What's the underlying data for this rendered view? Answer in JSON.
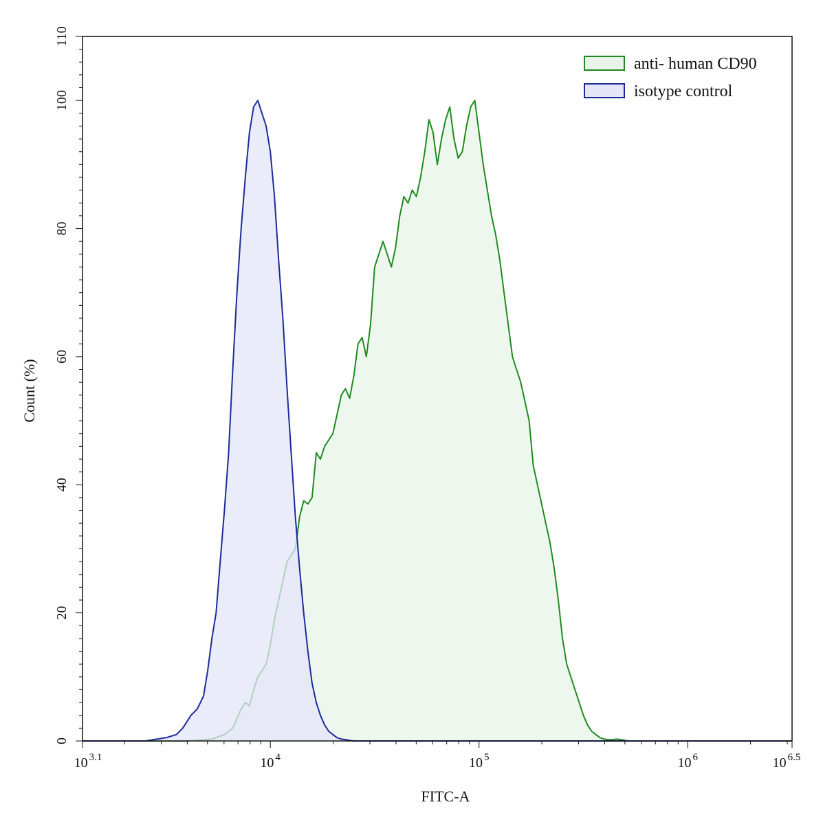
{
  "chart_data": {
    "type": "area",
    "title": "",
    "xlabel": "FITC-A",
    "ylabel": "Count  (%)",
    "x_scale": "log10",
    "xlim": [
      3.1,
      6.5
    ],
    "ylim": [
      0,
      110
    ],
    "x_ticks": [
      {
        "exp": 3.1,
        "base": "10",
        "sup": "3.1"
      },
      {
        "exp": 4,
        "base": "10",
        "sup": "4"
      },
      {
        "exp": 5,
        "base": "10",
        "sup": "5"
      },
      {
        "exp": 6,
        "base": "10",
        "sup": "6"
      },
      {
        "exp": 6.5,
        "base": "10",
        "sup": "6.5"
      }
    ],
    "y_ticks": [
      "0",
      "20",
      "40",
      "60",
      "80",
      "100",
      "110"
    ],
    "grid": false,
    "legend_position": "top-right",
    "series": [
      {
        "name": "anti- human CD90",
        "stroke": "#1f8a1f",
        "fill": "#e8f4e8",
        "x_log10": [
          3.1,
          3.6,
          3.72,
          3.78,
          3.82,
          3.86,
          3.88,
          3.9,
          3.92,
          3.94,
          3.96,
          3.98,
          4.0,
          4.02,
          4.04,
          4.06,
          4.08,
          4.1,
          4.12,
          4.14,
          4.16,
          4.18,
          4.2,
          4.22,
          4.24,
          4.26,
          4.28,
          4.3,
          4.32,
          4.34,
          4.36,
          4.38,
          4.4,
          4.42,
          4.44,
          4.46,
          4.48,
          4.5,
          4.52,
          4.54,
          4.56,
          4.58,
          4.6,
          4.62,
          4.64,
          4.66,
          4.68,
          4.7,
          4.72,
          4.74,
          4.76,
          4.78,
          4.8,
          4.82,
          4.84,
          4.86,
          4.88,
          4.9,
          4.92,
          4.94,
          4.96,
          4.98,
          5.0,
          5.02,
          5.04,
          5.06,
          5.08,
          5.1,
          5.12,
          5.14,
          5.16,
          5.18,
          5.2,
          5.22,
          5.24,
          5.26,
          5.28,
          5.3,
          5.32,
          5.34,
          5.36,
          5.38,
          5.4,
          5.42,
          5.44,
          5.46,
          5.48,
          5.5,
          5.52,
          5.54,
          5.56,
          5.58,
          5.6,
          5.62,
          5.64,
          5.66,
          5.68,
          5.7,
          5.72,
          5.74,
          5.76,
          5.78,
          5.8,
          5.82,
          5.84,
          5.86,
          5.88,
          5.9,
          5.92,
          5.94,
          5.96,
          5.98,
          6.0,
          6.02,
          6.04,
          6.06,
          6.08,
          6.1,
          6.2,
          6.5
        ],
        "y": [
          0,
          0,
          0.3,
          1,
          2,
          5,
          6,
          5.5,
          8,
          10,
          11,
          12,
          15,
          19,
          22,
          25,
          28,
          29,
          30,
          35,
          37.5,
          37,
          38,
          45,
          44,
          46,
          47,
          48,
          51,
          54,
          55,
          53.5,
          57,
          62,
          63,
          60,
          65,
          74,
          76,
          78,
          76,
          74,
          77,
          82,
          85,
          84,
          86,
          85,
          88,
          92,
          97,
          95,
          90,
          94,
          97,
          99,
          94,
          91,
          92,
          96,
          99,
          100,
          95,
          90,
          86,
          82,
          79,
          75,
          70,
          65,
          60,
          58,
          56,
          53,
          50,
          43,
          40,
          37,
          34,
          31,
          27,
          22,
          16,
          12,
          10,
          8,
          6,
          4,
          2.5,
          1.5,
          1,
          0.5,
          0.3,
          0.2,
          0.2,
          0.3,
          0.2,
          0.1,
          0,
          0,
          0,
          0,
          0,
          0,
          0,
          0,
          0,
          0,
          0,
          0,
          0,
          0,
          0,
          0,
          0,
          0,
          0,
          0,
          0,
          0
        ]
      },
      {
        "name": "isotype control",
        "stroke": "#1a2a9a",
        "fill": "#e4e6f8",
        "x_log10": [
          3.1,
          3.4,
          3.5,
          3.55,
          3.58,
          3.62,
          3.65,
          3.68,
          3.7,
          3.72,
          3.74,
          3.76,
          3.78,
          3.8,
          3.82,
          3.84,
          3.86,
          3.88,
          3.9,
          3.92,
          3.94,
          3.96,
          3.98,
          4.0,
          4.02,
          4.04,
          4.06,
          4.08,
          4.1,
          4.12,
          4.14,
          4.16,
          4.18,
          4.2,
          4.22,
          4.24,
          4.26,
          4.28,
          4.3,
          4.32,
          4.34,
          4.36,
          4.38,
          4.4,
          4.44,
          4.5,
          4.6,
          6.5
        ],
        "y": [
          0,
          0,
          0.5,
          1,
          2,
          4,
          5,
          7,
          11,
          16,
          20,
          28,
          36,
          45,
          58,
          70,
          80,
          88,
          95,
          99,
          100,
          98,
          96,
          92,
          85,
          75,
          66,
          55,
          45,
          35,
          27,
          20,
          14,
          9,
          6,
          4,
          2.5,
          1.5,
          1,
          0.5,
          0.3,
          0.2,
          0.1,
          0,
          0,
          0,
          0,
          0
        ]
      }
    ]
  }
}
